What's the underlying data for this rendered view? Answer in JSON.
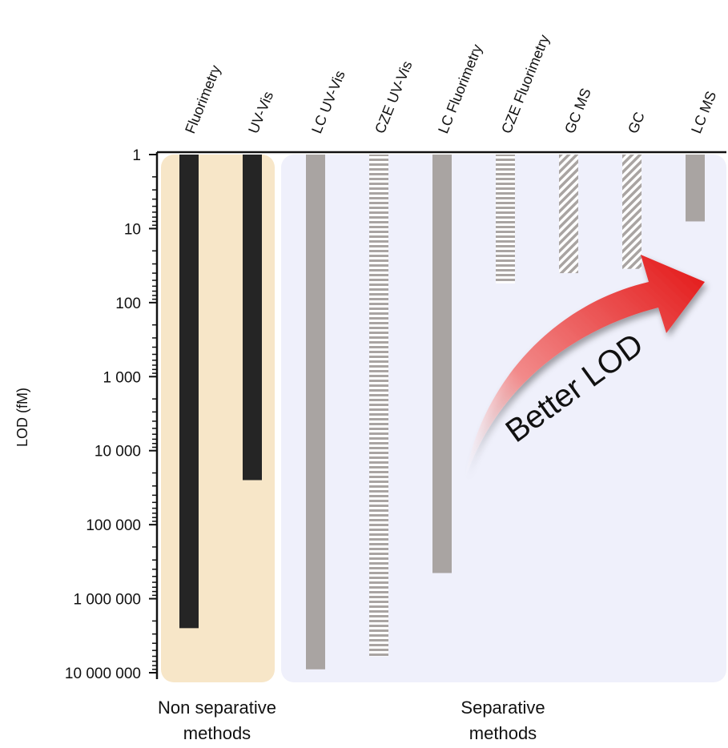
{
  "chart_data": {
    "type": "bar",
    "scale": "log",
    "ylabel": "LOD (fM)",
    "ylim": [
      1,
      10000000
    ],
    "yticks": [
      {
        "value": 1,
        "label": "1"
      },
      {
        "value": 10,
        "label": "10"
      },
      {
        "value": 100,
        "label": "100"
      },
      {
        "value": 1000,
        "label": "1 000"
      },
      {
        "value": 10000,
        "label": "10 000"
      },
      {
        "value": 100000,
        "label": "100 000"
      },
      {
        "value": 1000000,
        "label": "1 000 000"
      },
      {
        "value": 10000000,
        "label": "10 000 000"
      }
    ],
    "categories": [
      "Fluorimetry",
      "UV-Vis",
      "LC UV-Vis",
      "CZE UV-Vis",
      "LC Fluorimetry",
      "CZE Fluorimetry",
      "GC MS",
      "GC",
      "LC MS"
    ],
    "values": [
      2500000,
      25000,
      9000000,
      6000000,
      450000,
      55,
      40,
      35,
      8
    ],
    "bar_styles": [
      "solid-black",
      "solid-black",
      "solid-gray",
      "horizontal-stripes",
      "solid-gray",
      "horizontal-stripes",
      "diagonal-stripes",
      "diagonal-stripes",
      "solid-gray"
    ],
    "groups": [
      {
        "label_line1": "Non separative",
        "label_line2": "methods",
        "categories": [
          "Fluorimetry",
          "UV-Vis"
        ],
        "color": "#f7e6c8"
      },
      {
        "label_line1": "Separative",
        "label_line2": "methods",
        "categories": [
          "LC UV-Vis",
          "CZE UV-Vis",
          "LC Fluorimetry",
          "CZE Fluorimetry",
          "GC MS",
          "GC",
          "LC MS"
        ],
        "color": "#eff0fb"
      }
    ],
    "annotation": "Better LOD",
    "colors": {
      "black": "#252525",
      "gray": "#a9a4a2",
      "arrow": "#e21b1b"
    }
  }
}
